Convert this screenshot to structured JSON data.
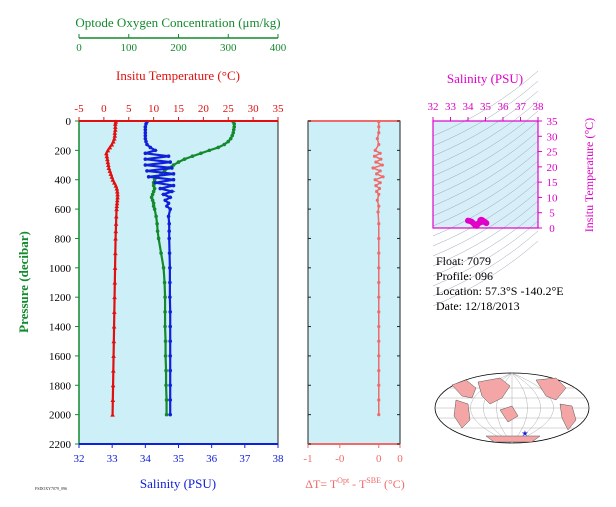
{
  "colors": {
    "oxygen": "#138a2d",
    "temperature": "#e01010",
    "salinity": "#1020d8",
    "delta": "#f06a6a",
    "pressure": "#138a2d",
    "ts_axis": "#e000c8",
    "panel_bg": "#cdeff8",
    "ts_bg": "#d8eef8",
    "land": "#f4a6a6"
  },
  "chart_data": [
    {
      "type": "line",
      "panel": "main-profile",
      "ylabel": "Pressure (decibar)",
      "y_ticks": [
        "0",
        "200",
        "400",
        "600",
        "800",
        "1000",
        "1200",
        "1400",
        "1600",
        "1800",
        "2000",
        "2200"
      ],
      "ylim": [
        0,
        2200
      ],
      "oxygen_axis": {
        "label": "Optode Oxygen Concentration (μm/kg)",
        "ticks": [
          "0",
          "100",
          "200",
          "300",
          "400"
        ],
        "range": [
          0,
          400
        ]
      },
      "temperature_axis": {
        "label": "Insitu Temperature (°C)",
        "ticks": [
          "-5",
          "0",
          "5",
          "10",
          "15",
          "20",
          "25",
          "30",
          "35"
        ],
        "range": [
          -5,
          35
        ]
      },
      "salinity_axis": {
        "label": "Salinity (PSU)",
        "ticks": [
          "32",
          "33",
          "34",
          "35",
          "36",
          "37",
          "38"
        ],
        "range": [
          32,
          38
        ]
      },
      "series": [
        {
          "key": "oxygen",
          "p": [
            5,
            20,
            40,
            60,
            80,
            100,
            120,
            140,
            160,
            180,
            200,
            220,
            240,
            260,
            280,
            300,
            320,
            340,
            360,
            380,
            400,
            420,
            440,
            460,
            480,
            500,
            520,
            540,
            560,
            580,
            600,
            650,
            700,
            750,
            800,
            900,
            1000,
            1100,
            1200,
            1300,
            1400,
            1500,
            1600,
            1700,
            1800,
            1900,
            2000
          ],
          "values": [
            310,
            312,
            312,
            311,
            310,
            308,
            305,
            300,
            292,
            280,
            262,
            245,
            228,
            212,
            200,
            190,
            180,
            172,
            165,
            158,
            152,
            150,
            150,
            152,
            150,
            148,
            146,
            148,
            150,
            150,
            152,
            155,
            157,
            158,
            160,
            165,
            170,
            172,
            173,
            173,
            173,
            174,
            174,
            175,
            175,
            176,
            176
          ]
        },
        {
          "key": "temperature",
          "p": [
            5,
            20,
            40,
            60,
            80,
            100,
            120,
            140,
            160,
            180,
            200,
            220,
            240,
            260,
            280,
            300,
            320,
            340,
            360,
            380,
            400,
            420,
            440,
            460,
            480,
            500,
            520,
            540,
            560,
            580,
            600,
            650,
            700,
            750,
            800,
            900,
            1000,
            1100,
            1200,
            1300,
            1400,
            1500,
            1600,
            1700,
            1800,
            1900,
            2000
          ],
          "values": [
            2.4,
            2.3,
            2.3,
            2.3,
            2.2,
            2.2,
            2.1,
            1.9,
            1.6,
            1.2,
            0.8,
            0.5,
            0.6,
            0.7,
            0.8,
            0.9,
            1.0,
            1.2,
            1.4,
            1.6,
            1.8,
            2.1,
            2.4,
            2.6,
            2.7,
            2.75,
            2.75,
            2.7,
            2.65,
            2.6,
            2.55,
            2.5,
            2.45,
            2.4,
            2.35,
            2.3,
            2.25,
            2.2,
            2.15,
            2.1,
            2.05,
            2.0,
            1.95,
            1.9,
            1.85,
            1.8,
            1.75
          ]
        },
        {
          "key": "salinity",
          "p": [
            5,
            20,
            40,
            60,
            80,
            100,
            120,
            140,
            160,
            180,
            200,
            220,
            240,
            260,
            280,
            300,
            320,
            340,
            360,
            380,
            400,
            420,
            440,
            460,
            480,
            500,
            520,
            540,
            560,
            580,
            600,
            650,
            700,
            750,
            800,
            900,
            1000,
            1100,
            1200,
            1300,
            1400,
            1500,
            1600,
            1700,
            1800,
            1900,
            2000
          ],
          "values": [
            34.05,
            34.02,
            34.0,
            34.0,
            34.0,
            34.0,
            34.0,
            34.02,
            34.05,
            34.15,
            34.3,
            34.0,
            34.7,
            34.0,
            34.75,
            34.0,
            34.8,
            34.05,
            34.85,
            34.1,
            34.85,
            34.3,
            34.85,
            34.45,
            34.8,
            34.55,
            34.75,
            34.6,
            34.7,
            34.65,
            34.75,
            34.7,
            34.72,
            34.72,
            34.72,
            34.73,
            34.74,
            34.74,
            34.74,
            34.75,
            34.75,
            34.75,
            34.75,
            34.75,
            34.75,
            34.75,
            34.75
          ]
        }
      ],
      "footnote": "FSDOXY7079_096"
    },
    {
      "type": "line",
      "panel": "delta-t",
      "xlabel_base": "ΔT= T",
      "xlabel_sup1": "Opt",
      "xlabel_mid": " - T",
      "xlabel_sup2": "SBE",
      "xlabel_unit": " (°C)",
      "x_ticks": [
        "-1",
        "-0",
        "0",
        "0"
      ],
      "xlim": [
        -1,
        0.3
      ],
      "p": [
        5,
        40,
        80,
        120,
        160,
        200,
        220,
        240,
        260,
        280,
        300,
        320,
        340,
        360,
        380,
        400,
        420,
        440,
        460,
        480,
        500,
        540,
        580,
        620,
        700,
        800,
        900,
        1000,
        1100,
        1200,
        1300,
        1400,
        1500,
        1600,
        1700,
        1800,
        1900,
        2000
      ],
      "values": [
        0.0,
        0.0,
        0.0,
        -0.02,
        0.0,
        -0.05,
        0.02,
        -0.06,
        0.03,
        -0.04,
        0.05,
        -0.08,
        0.02,
        -0.03,
        0.06,
        -0.05,
        0.02,
        -0.04,
        0.01,
        -0.03,
        0.0,
        -0.02,
        0.0,
        -0.01,
        0.0,
        0.0,
        0.0,
        0.0,
        0.0,
        0.0,
        0.0,
        0.0,
        0.0,
        0.0,
        0.0,
        0.0,
        0.0,
        0.0
      ]
    },
    {
      "type": "scatter",
      "panel": "ts-diagram",
      "title": "Salinity (PSU)",
      "x_ticks": [
        "32",
        "33",
        "34",
        "35",
        "36",
        "37",
        "38"
      ],
      "xlim": [
        32,
        38
      ],
      "ylabel": "Insitu Temperature (°C)",
      "y_ticks": [
        "0",
        "5",
        "10",
        "15",
        "20",
        "25",
        "30",
        "35"
      ],
      "ylim": [
        0,
        35
      ],
      "points": [
        [
          34.0,
          2.4
        ],
        [
          34.1,
          2.3
        ],
        [
          34.2,
          2.1
        ],
        [
          34.3,
          1.6
        ],
        [
          34.4,
          1.0
        ],
        [
          34.5,
          0.7
        ],
        [
          34.6,
          1.5
        ],
        [
          34.7,
          2.5
        ],
        [
          34.75,
          2.7
        ],
        [
          34.8,
          2.6
        ],
        [
          34.85,
          2.4
        ],
        [
          34.9,
          2.2
        ],
        [
          34.95,
          2.0
        ],
        [
          35.0,
          1.8
        ],
        [
          35.05,
          1.6
        ],
        [
          34.72,
          2.1
        ],
        [
          34.73,
          2.3
        ],
        [
          34.74,
          1.9
        ]
      ]
    }
  ],
  "info": {
    "float": "Float:  7079",
    "profile": "Profile:  096",
    "location": "Location:  57.3°S  -140.2°E",
    "date": "Date:  12/18/2013"
  },
  "map": {
    "marker": "★"
  }
}
